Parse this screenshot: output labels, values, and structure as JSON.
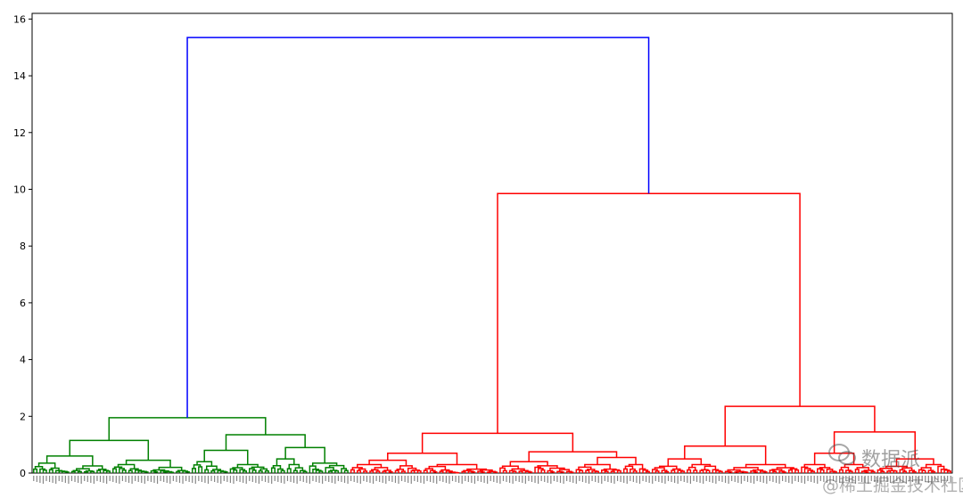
{
  "chart_data": {
    "type": "dendrogram",
    "title": "",
    "xlabel": "",
    "ylabel": "",
    "ylim": [
      0,
      16.2
    ],
    "yticks": [
      0,
      2,
      4,
      6,
      8,
      10,
      12,
      14,
      16
    ],
    "grid": false,
    "colors": {
      "root": "#0000ff",
      "cluster_a": "#008000",
      "cluster_b": "#ff0000",
      "axis": "#000000"
    },
    "root_merge_height": 15.35,
    "clusters": [
      {
        "color": "cluster_a",
        "leaf_count": 100,
        "merge_height": 1.95,
        "children": [
          {
            "merge_height": 1.15,
            "children": [
              {
                "merge_height": 0.6,
                "children": [
                  0.35,
                  0.25
                ]
              },
              {
                "merge_height": 0.45,
                "children": [
                  0.3,
                  0.2
                ]
              }
            ]
          },
          {
            "merge_height": 1.35,
            "children": [
              {
                "merge_height": 0.8,
                "children": [
                  0.4,
                  0.3
                ]
              },
              {
                "merge_height": 0.9,
                "children": [
                  0.5,
                  0.35
                ]
              }
            ]
          }
        ]
      },
      {
        "color": "cluster_b",
        "leaf_count": 190,
        "merge_height": 9.85,
        "children": [
          {
            "merge_height": 1.4,
            "children": [
              {
                "merge_height": 0.7,
                "children": [
                  0.45,
                  0.3
                ]
              },
              {
                "merge_height": 0.75,
                "children": [
                  0.4,
                  0.55
                ]
              }
            ]
          },
          {
            "merge_height": 2.35,
            "children": [
              {
                "merge_height": 0.95,
                "children": [
                  0.5,
                  0.3
                ]
              },
              {
                "merge_height": 1.45,
                "children": [
                  0.7,
                  0.5
                ]
              }
            ]
          }
        ]
      }
    ]
  },
  "watermark": {
    "line1": "数据派",
    "line2": "@稀土掘金技术社区"
  }
}
